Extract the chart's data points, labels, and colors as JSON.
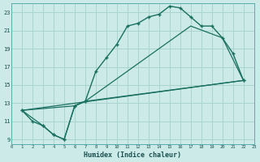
{
  "xlabel": "Humidex (Indice chaleur)",
  "bg_color": "#cceae8",
  "grid_color": "#aad4d0",
  "line_color": "#1a7060",
  "xlim": [
    0,
    23
  ],
  "ylim": [
    8.5,
    24.0
  ],
  "xticks": [
    0,
    1,
    2,
    3,
    4,
    5,
    6,
    7,
    8,
    9,
    10,
    11,
    12,
    13,
    14,
    15,
    16,
    17,
    18,
    19,
    20,
    21,
    22,
    23
  ],
  "yticks": [
    9,
    11,
    13,
    15,
    17,
    19,
    21,
    23
  ],
  "curve1_x": [
    1,
    2,
    3,
    4,
    5,
    6,
    7,
    8,
    9,
    10,
    11,
    12,
    13,
    14,
    15,
    16,
    17,
    18,
    19,
    20,
    21,
    22
  ],
  "curve1_y": [
    12.2,
    11.0,
    10.5,
    9.5,
    9.0,
    12.7,
    13.2,
    16.5,
    18.0,
    19.5,
    21.5,
    21.8,
    22.5,
    22.8,
    23.7,
    23.5,
    22.5,
    21.5,
    21.5,
    20.2,
    18.5,
    15.5
  ],
  "curve2_x": [
    1,
    3,
    4,
    5,
    6,
    7,
    22
  ],
  "curve2_y": [
    12.2,
    10.5,
    9.5,
    9.0,
    12.7,
    13.2,
    15.5
  ],
  "curve3_x": [
    1,
    22
  ],
  "curve3_y": [
    12.2,
    15.5
  ],
  "curve4_x": [
    1,
    6,
    7,
    17,
    20,
    22
  ],
  "curve4_y": [
    12.2,
    12.7,
    13.2,
    21.5,
    20.2,
    15.5
  ]
}
